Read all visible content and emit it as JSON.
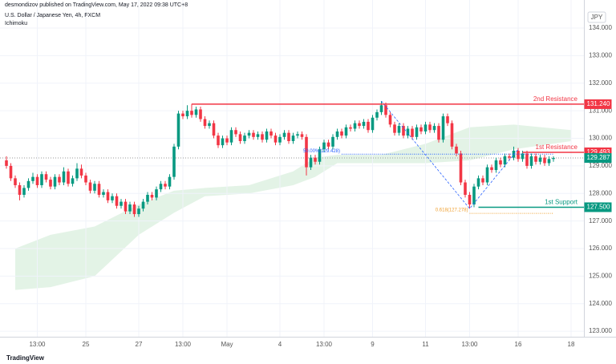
{
  "header": {
    "author": "desmondizov published on TradingView.com, May 17, 2022 09:38 UTC+8",
    "symbol": "U.S. Dollar / Japanese Yen, 4h, FXCM",
    "indicator": "Ichimoku",
    "currency": "JPY",
    "logo": "TradingView"
  },
  "chart_data": {
    "type": "candlestick",
    "up_color": "#089981",
    "down_color": "#f23645",
    "xlim": [
      0,
      131
    ],
    "ylim": [
      122.8,
      135.02
    ],
    "xticks": [
      {
        "value": 7,
        "label": "13:00"
      },
      {
        "value": 18,
        "label": "25"
      },
      {
        "value": 30,
        "label": "27"
      },
      {
        "value": 40,
        "label": "13:00"
      },
      {
        "value": 50,
        "label": "May"
      },
      {
        "value": 62,
        "label": "4"
      },
      {
        "value": 72,
        "label": "13:00"
      },
      {
        "value": 83,
        "label": "9"
      },
      {
        "value": 95,
        "label": "11"
      },
      {
        "value": 105,
        "label": "13:00"
      },
      {
        "value": 116,
        "label": "16"
      },
      {
        "value": 128,
        "label": "18"
      }
    ],
    "yticks": [
      {
        "value": 123,
        "label": "123.000"
      },
      {
        "value": 124,
        "label": "124.000"
      },
      {
        "value": 125,
        "label": "125.000"
      },
      {
        "value": 126,
        "label": "126.000"
      },
      {
        "value": 127,
        "label": "127.000"
      },
      {
        "value": 128,
        "label": "128.000"
      },
      {
        "value": 129,
        "label": "129.000"
      },
      {
        "value": 130,
        "label": "130.000"
      },
      {
        "value": 131,
        "label": "131.000"
      },
      {
        "value": 132,
        "label": "132.000"
      },
      {
        "value": 133,
        "label": "133.000"
      },
      {
        "value": 134,
        "label": "134.000"
      }
    ],
    "x": [
      0,
      1,
      2,
      3,
      4,
      5,
      6,
      7,
      8,
      9,
      10,
      11,
      12,
      13,
      14,
      15,
      16,
      17,
      18,
      19,
      20,
      21,
      22,
      23,
      24,
      25,
      26,
      27,
      28,
      29,
      30,
      31,
      32,
      33,
      34,
      35,
      36,
      37,
      38,
      39,
      40,
      41,
      42,
      43,
      44,
      45,
      46,
      47,
      48,
      49,
      50,
      51,
      52,
      53,
      54,
      55,
      56,
      57,
      58,
      59,
      60,
      61,
      62,
      63,
      64,
      65,
      66,
      67,
      68,
      69,
      70,
      71,
      72,
      73,
      74,
      75,
      76,
      77,
      78,
      79,
      80,
      81,
      82,
      83,
      84,
      85,
      86,
      87,
      88,
      89,
      90,
      91,
      92,
      93,
      94,
      95,
      96,
      97,
      98,
      99,
      100,
      101,
      102,
      103,
      104,
      105,
      106,
      107,
      108,
      109,
      110,
      111,
      112,
      113,
      114,
      115,
      116,
      117,
      118,
      119,
      120,
      121,
      122,
      123,
      124
    ],
    "ohlc": [
      [
        129.2,
        129.35,
        128.9,
        129.0
      ],
      [
        129.0,
        129.1,
        128.45,
        128.55
      ],
      [
        128.55,
        128.65,
        128.2,
        128.3
      ],
      [
        128.3,
        128.4,
        127.75,
        127.95
      ],
      [
        127.95,
        128.3,
        127.85,
        128.2
      ],
      [
        128.2,
        128.55,
        128.1,
        128.45
      ],
      [
        128.45,
        128.75,
        128.35,
        128.6
      ],
      [
        128.6,
        128.7,
        128.2,
        128.3
      ],
      [
        128.3,
        128.8,
        128.2,
        128.7
      ],
      [
        128.7,
        128.8,
        128.4,
        128.5
      ],
      [
        128.5,
        128.6,
        128.15,
        128.25
      ],
      [
        128.25,
        128.7,
        128.15,
        128.6
      ],
      [
        128.6,
        128.7,
        128.3,
        128.4
      ],
      [
        128.4,
        128.95,
        128.3,
        128.8
      ],
      [
        128.8,
        128.9,
        128.25,
        128.35
      ],
      [
        128.35,
        128.65,
        128.25,
        128.55
      ],
      [
        128.55,
        129.1,
        128.45,
        128.9
      ],
      [
        128.9,
        129.05,
        128.55,
        128.65
      ],
      [
        128.65,
        128.75,
        128.3,
        128.4
      ],
      [
        128.4,
        128.5,
        128.0,
        128.1
      ],
      [
        128.1,
        128.45,
        128.0,
        128.35
      ],
      [
        128.35,
        128.45,
        127.85,
        127.95
      ],
      [
        127.95,
        128.15,
        127.85,
        128.05
      ],
      [
        128.05,
        128.15,
        127.65,
        127.75
      ],
      [
        127.75,
        128.0,
        127.65,
        127.9
      ],
      [
        127.9,
        128.0,
        127.45,
        127.55
      ],
      [
        127.55,
        127.8,
        127.45,
        127.7
      ],
      [
        127.7,
        127.8,
        127.25,
        127.35
      ],
      [
        127.35,
        127.7,
        127.25,
        127.6
      ],
      [
        127.6,
        127.7,
        127.15,
        127.25
      ],
      [
        127.25,
        127.55,
        127.15,
        127.45
      ],
      [
        127.45,
        127.8,
        127.35,
        127.7
      ],
      [
        127.7,
        128.05,
        127.6,
        127.95
      ],
      [
        127.95,
        128.05,
        127.75,
        127.85
      ],
      [
        127.85,
        128.25,
        127.75,
        128.15
      ],
      [
        128.15,
        128.45,
        128.05,
        128.35
      ],
      [
        128.35,
        128.45,
        128.15,
        128.25
      ],
      [
        128.25,
        128.7,
        128.15,
        128.6
      ],
      [
        128.6,
        129.8,
        128.5,
        129.7
      ],
      [
        129.7,
        131.0,
        129.6,
        130.9
      ],
      [
        130.9,
        131.0,
        130.7,
        130.8
      ],
      [
        130.8,
        131.2,
        130.7,
        131.0
      ],
      [
        131.0,
        131.25,
        130.75,
        130.85
      ],
      [
        130.85,
        131.15,
        130.75,
        131.05
      ],
      [
        131.05,
        131.15,
        130.6,
        130.7
      ],
      [
        130.7,
        130.8,
        130.35,
        130.45
      ],
      [
        130.45,
        130.65,
        130.35,
        130.55
      ],
      [
        130.55,
        130.65,
        130.0,
        130.1
      ],
      [
        130.1,
        130.2,
        129.65,
        129.75
      ],
      [
        129.75,
        130.1,
        129.65,
        130.0
      ],
      [
        130.0,
        130.1,
        129.75,
        129.85
      ],
      [
        129.85,
        130.4,
        129.75,
        130.3
      ],
      [
        130.3,
        130.4,
        130.05,
        130.15
      ],
      [
        130.15,
        130.25,
        129.8,
        129.9
      ],
      [
        129.9,
        130.2,
        129.8,
        130.1
      ],
      [
        130.1,
        130.3,
        130.0,
        130.2
      ],
      [
        130.2,
        130.3,
        129.95,
        130.05
      ],
      [
        130.05,
        130.25,
        129.95,
        130.15
      ],
      [
        130.15,
        130.25,
        129.85,
        129.95
      ],
      [
        129.95,
        130.35,
        129.85,
        130.25
      ],
      [
        130.25,
        130.35,
        130.0,
        130.1
      ],
      [
        130.1,
        130.2,
        129.75,
        129.85
      ],
      [
        129.85,
        130.15,
        129.75,
        130.05
      ],
      [
        130.05,
        130.3,
        129.95,
        130.2
      ],
      [
        130.2,
        130.3,
        129.8,
        129.9
      ],
      [
        129.9,
        130.2,
        129.8,
        130.1
      ],
      [
        130.1,
        130.25,
        130.0,
        130.15
      ],
      [
        130.15,
        130.25,
        129.95,
        130.05
      ],
      [
        130.05,
        130.15,
        128.65,
        128.95
      ],
      [
        128.95,
        129.4,
        128.85,
        129.3
      ],
      [
        129.3,
        129.4,
        129.05,
        129.15
      ],
      [
        129.15,
        129.7,
        129.05,
        129.6
      ],
      [
        129.6,
        129.95,
        129.5,
        129.85
      ],
      [
        129.85,
        129.95,
        129.6,
        129.7
      ],
      [
        129.7,
        130.15,
        129.6,
        130.05
      ],
      [
        130.05,
        130.35,
        129.95,
        130.25
      ],
      [
        130.25,
        130.35,
        130.0,
        130.1
      ],
      [
        130.1,
        130.5,
        130.0,
        130.4
      ],
      [
        130.4,
        130.5,
        130.25,
        130.35
      ],
      [
        130.35,
        130.65,
        130.25,
        130.55
      ],
      [
        130.55,
        130.65,
        130.35,
        130.45
      ],
      [
        130.45,
        130.7,
        130.35,
        130.6
      ],
      [
        130.6,
        130.7,
        130.2,
        130.3
      ],
      [
        130.3,
        130.85,
        130.2,
        130.75
      ],
      [
        130.75,
        131.05,
        130.65,
        130.95
      ],
      [
        130.95,
        131.35,
        130.85,
        131.2
      ],
      [
        131.2,
        131.3,
        130.75,
        130.85
      ],
      [
        130.85,
        130.95,
        130.4,
        130.5
      ],
      [
        130.5,
        130.6,
        130.1,
        130.2
      ],
      [
        130.2,
        130.55,
        130.1,
        130.45
      ],
      [
        130.45,
        130.55,
        130.0,
        130.1
      ],
      [
        130.1,
        130.45,
        130.0,
        130.35
      ],
      [
        130.35,
        130.45,
        129.95,
        130.05
      ],
      [
        130.05,
        130.5,
        129.95,
        130.4
      ],
      [
        130.4,
        130.5,
        130.15,
        130.25
      ],
      [
        130.25,
        130.6,
        130.15,
        130.5
      ],
      [
        130.5,
        130.6,
        130.2,
        130.3
      ],
      [
        130.3,
        130.55,
        130.2,
        130.45
      ],
      [
        130.45,
        130.55,
        129.85,
        129.95
      ],
      [
        129.95,
        130.9,
        129.85,
        130.8
      ],
      [
        130.8,
        130.9,
        130.45,
        130.55
      ],
      [
        130.55,
        130.65,
        129.6,
        129.7
      ],
      [
        129.7,
        129.8,
        129.35,
        129.45
      ],
      [
        129.45,
        129.55,
        128.3,
        128.4
      ],
      [
        128.4,
        128.5,
        127.85,
        127.95
      ],
      [
        127.95,
        128.05,
        127.45,
        127.6
      ],
      [
        127.6,
        128.35,
        127.5,
        128.25
      ],
      [
        128.25,
        128.65,
        128.15,
        128.55
      ],
      [
        128.55,
        128.65,
        128.3,
        128.4
      ],
      [
        128.4,
        129.05,
        128.3,
        128.95
      ],
      [
        128.95,
        129.05,
        128.75,
        128.85
      ],
      [
        128.85,
        129.3,
        128.75,
        129.2
      ],
      [
        129.2,
        129.3,
        128.95,
        129.05
      ],
      [
        129.05,
        129.45,
        128.95,
        129.35
      ],
      [
        129.35,
        129.45,
        129.2,
        129.3
      ],
      [
        129.3,
        129.7,
        129.2,
        129.55
      ],
      [
        129.55,
        129.65,
        129.15,
        129.25
      ],
      [
        129.25,
        129.55,
        129.15,
        129.45
      ],
      [
        129.45,
        129.55,
        128.9,
        129.0
      ],
      [
        129.0,
        129.45,
        128.9,
        129.35
      ],
      [
        129.35,
        129.45,
        129.05,
        129.15
      ],
      [
        129.15,
        129.4,
        129.05,
        129.3
      ],
      [
        129.3,
        129.4,
        129.0,
        129.1
      ],
      [
        129.1,
        129.35,
        129.0,
        129.25
      ],
      [
        129.25,
        129.35,
        129.15,
        129.287
      ]
    ],
    "cloud": {
      "color": "#e3f3e6",
      "x": [
        2,
        10,
        20,
        30,
        38,
        45,
        55,
        65,
        70,
        75,
        85,
        95,
        105,
        115,
        128
      ],
      "upper": [
        126.0,
        126.5,
        126.8,
        127.6,
        128.1,
        128.2,
        128.3,
        128.8,
        129.3,
        129.4,
        129.4,
        129.8,
        130.4,
        130.5,
        130.3
      ],
      "lower": [
        124.5,
        124.6,
        125.0,
        126.5,
        127.3,
        127.9,
        128.0,
        128.3,
        128.6,
        129.1,
        129.1,
        129.1,
        129.2,
        129.6,
        129.9
      ]
    },
    "trendline": {
      "color": "#2962ff",
      "x": [
        85,
        105,
        116
      ],
      "y": [
        131.35,
        127.45,
        129.6
      ]
    },
    "fib": [
      {
        "label": "50.00%(129.428)",
        "value": 129.428,
        "start": 76,
        "color": "#2962ff"
      },
      {
        "label": "0.618(127.278)",
        "value": 127.278,
        "start": 105,
        "color": "#f0a030"
      }
    ],
    "levels": [
      {
        "name": "2nd Resistance",
        "value": 131.24,
        "value_label": "131.240",
        "start": 42,
        "color": "#f23645"
      },
      {
        "name": "1st Resistance",
        "value": 129.493,
        "start": 117,
        "color": "#f23645"
      },
      {
        "name": "1st Support",
        "value": 127.5,
        "value_label": "127.500",
        "start": 107,
        "color": "#089981"
      }
    ],
    "last_price": {
      "value": 129.287,
      "color": "#089981"
    }
  }
}
